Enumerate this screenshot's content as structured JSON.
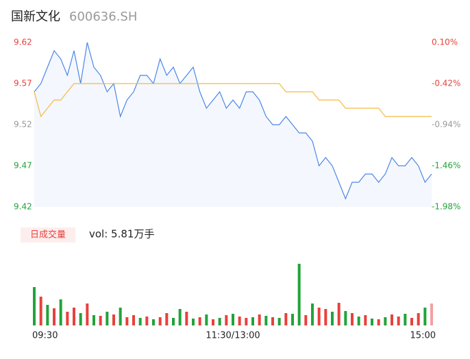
{
  "chart_data": {
    "type": "line",
    "title": "国新文化",
    "subtitle": "600636.SH",
    "categories": [
      "09:30",
      null,
      null,
      null,
      null,
      null,
      null,
      null,
      null,
      null,
      null,
      null,
      null,
      null,
      null,
      null,
      null,
      null,
      null,
      null,
      null,
      null,
      null,
      null,
      null,
      null,
      null,
      null,
      null,
      null,
      "11:30/13:00",
      null,
      null,
      null,
      null,
      null,
      null,
      null,
      null,
      null,
      null,
      null,
      null,
      null,
      null,
      null,
      null,
      null,
      null,
      null,
      null,
      null,
      null,
      null,
      null,
      null,
      null,
      null,
      null,
      null,
      "15:00"
    ],
    "series": [
      {
        "color": "#4a86e8",
        "values": [
          9.56,
          9.57,
          9.59,
          9.61,
          9.6,
          9.58,
          9.61,
          9.57,
          9.62,
          9.59,
          9.58,
          9.56,
          9.57,
          9.53,
          9.55,
          9.56,
          9.58,
          9.58,
          9.57,
          9.6,
          9.58,
          9.59,
          9.57,
          9.58,
          9.59,
          9.56,
          9.54,
          9.55,
          9.56,
          9.54,
          9.55,
          9.54,
          9.56,
          9.56,
          9.55,
          9.53,
          9.52,
          9.52,
          9.53,
          9.52,
          9.51,
          9.51,
          9.5,
          9.47,
          9.48,
          9.47,
          9.45,
          9.43,
          9.45,
          9.45,
          9.46,
          9.46,
          9.45,
          9.46,
          9.48,
          9.47,
          9.47,
          9.48,
          9.47,
          9.45,
          9.46
        ]
      },
      {
        "color": "#f5b942",
        "values": [
          9.56,
          9.53,
          9.54,
          9.55,
          9.55,
          9.56,
          9.57,
          9.57,
          9.57,
          9.57,
          9.57,
          9.57,
          9.57,
          9.57,
          9.57,
          9.57,
          9.57,
          9.57,
          9.57,
          9.57,
          9.57,
          9.57,
          9.57,
          9.57,
          9.57,
          9.57,
          9.57,
          9.57,
          9.57,
          9.57,
          9.57,
          9.57,
          9.57,
          9.57,
          9.57,
          9.57,
          9.57,
          9.57,
          9.56,
          9.56,
          9.56,
          9.56,
          9.56,
          9.55,
          9.55,
          9.55,
          9.55,
          9.54,
          9.54,
          9.54,
          9.54,
          9.54,
          9.54,
          9.53,
          9.53,
          9.53,
          9.53,
          9.53,
          9.53,
          9.53,
          9.53
        ]
      }
    ],
    "ylim": [
      9.42,
      9.62
    ],
    "yticks": [
      9.62,
      9.57,
      9.52,
      9.47,
      9.42
    ],
    "ytick_colors": [
      "#e8413c",
      "#e8413c",
      "#999999",
      "#22a33a",
      "#22a33a"
    ],
    "y2lim": [
      -1.98,
      0.1
    ],
    "y2ticks": [
      {
        "value": 0.1,
        "label": "0.10%"
      },
      {
        "value": -0.42,
        "label": "-0.42%"
      },
      {
        "value": -0.94,
        "label": "-0.94%"
      },
      {
        "value": -1.46,
        "label": "-1.46%"
      },
      {
        "value": -1.98,
        "label": "-1.98%"
      }
    ],
    "volume": {
      "name": "日成交量",
      "label": "vol: 5.81万手",
      "values": [
        560,
        420,
        300,
        250,
        380,
        200,
        260,
        180,
        320,
        150,
        140,
        200,
        160,
        260,
        120,
        150,
        110,
        130,
        90,
        120,
        180,
        110,
        240,
        200,
        100,
        120,
        160,
        90,
        110,
        150,
        170,
        130,
        110,
        120,
        160,
        140,
        120,
        110,
        180,
        170,
        900,
        150,
        320,
        260,
        240,
        200,
        330,
        210,
        180,
        130,
        150,
        100,
        90,
        120,
        160,
        130,
        170,
        110,
        180,
        260,
        320
      ],
      "colors": [
        "#22a33a",
        "#e8413c",
        "#22a33a",
        "#e8413c",
        "#22a33a",
        "#e8413c",
        "#e8413c",
        "#22a33a",
        "#e8413c",
        "#22a33a",
        "#e8413c",
        "#22a33a",
        "#e8413c",
        "#22a33a",
        "#e8413c",
        "#e8413c",
        "#22a33a",
        "#e8413c",
        "#22a33a",
        "#e8413c",
        "#e8413c",
        "#22a33a",
        "#22a33a",
        "#e8413c",
        "#22a33a",
        "#e8413c",
        "#22a33a",
        "#e8413c",
        "#22a33a",
        "#e8413c",
        "#22a33a",
        "#e8413c",
        "#e8413c",
        "#22a33a",
        "#e8413c",
        "#22a33a",
        "#e8413c",
        "#22a33a",
        "#e8413c",
        "#22a33a",
        "#22a33a",
        "#e8413c",
        "#22a33a",
        "#e8413c",
        "#e8413c",
        "#22a33a",
        "#e8413c",
        "#22a33a",
        "#e8413c",
        "#22a33a",
        "#e8413c",
        "#22a33a",
        "#e8413c",
        "#22a33a",
        "#e8413c",
        "#e8413c",
        "#22a33a",
        "#e8413c",
        "#e8413c",
        "#22a33a",
        "#f4a0a0"
      ]
    }
  }
}
